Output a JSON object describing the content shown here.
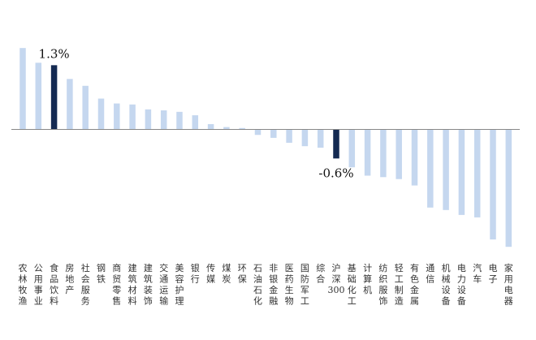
{
  "chart_data": {
    "type": "bar",
    "categories": [
      "农林牧渔",
      "公用事业",
      "食品饮料",
      "房地产",
      "社会服务",
      "钢铁",
      "商贸零售",
      "建筑材料",
      "建筑装饰",
      "交通运输",
      "美容护理",
      "银行",
      "传媒",
      "煤炭",
      "环保",
      "石油石化",
      "非银金融",
      "医药生物",
      "国防军工",
      "综合",
      "沪深300",
      "基础化工",
      "计算机",
      "纺织服饰",
      "轻工制造",
      "有色金属",
      "通信",
      "机械设备",
      "电力设备",
      "汽车",
      "电子",
      "家用电器"
    ],
    "values": [
      1.65,
      1.35,
      1.3,
      1.02,
      0.88,
      0.62,
      0.52,
      0.5,
      0.4,
      0.38,
      0.35,
      0.28,
      0.1,
      0.04,
      0.02,
      -0.12,
      -0.18,
      -0.28,
      -0.35,
      -0.38,
      -0.6,
      -0.78,
      -0.95,
      -0.98,
      -1.02,
      -1.15,
      -1.6,
      -1.65,
      -1.75,
      -1.8,
      -2.25,
      -2.4
    ],
    "highlighted": [
      "食品饮料",
      "沪深300"
    ],
    "data_labels": [
      {
        "category": "食品饮料",
        "text": "1.3%"
      },
      {
        "category": "沪深300",
        "text": "-0.6%"
      }
    ],
    "title": "",
    "xlabel": "",
    "ylabel": "",
    "ylim": [
      -2.5,
      1.7
    ],
    "grid": false,
    "legend": "none",
    "colors": {
      "bar": "#c5d7ef",
      "highlight": "#142a52",
      "axis": "#888888"
    }
  }
}
